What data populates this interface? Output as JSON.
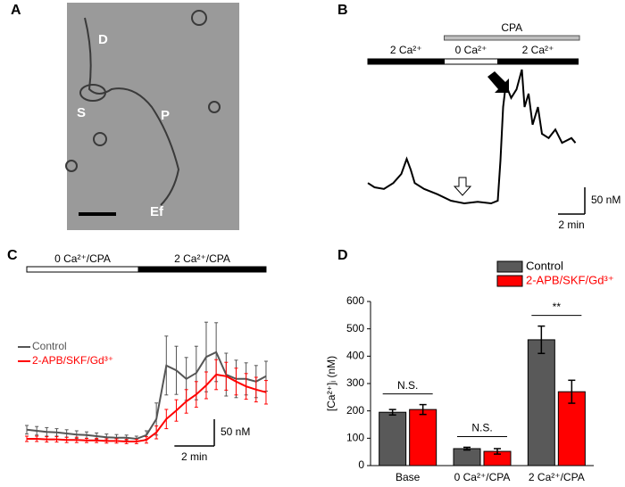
{
  "image_panel": {
    "label": "A",
    "annotations": [
      "D",
      "S",
      "P",
      "Ef"
    ]
  },
  "chart_data": [
    {
      "type": "line",
      "label": "B",
      "x": [
        0,
        0.5,
        1.2,
        1.9,
        2.5,
        2.9,
        3.2,
        3.5,
        4.2,
        5.2,
        6.2,
        7.2,
        8.2,
        9.2,
        9.7,
        9.9,
        10.1,
        10.3,
        10.7,
        11.1,
        11.5,
        11.7,
        12,
        12.3,
        12.7,
        13,
        13.5,
        14,
        14.5,
        15.2,
        15.5
      ],
      "series": [
        {
          "color": "#000000",
          "values": [
            58,
            50,
            47,
            58,
            75,
            103,
            83,
            58,
            47,
            37,
            25,
            20,
            23,
            20,
            25,
            100,
            200,
            242,
            217,
            233,
            270,
            200,
            225,
            167,
            200,
            150,
            142,
            158,
            133,
            142,
            133
          ]
        }
      ],
      "phases": [
        {
          "label": "2 Ca²⁺",
          "start": 0,
          "end": 5.7,
          "color": "#000000"
        },
        {
          "label": "0 Ca²⁺",
          "start": 5.7,
          "end": 9.7,
          "color": "#ffffff"
        },
        {
          "label": "2 Ca²⁺",
          "start": 9.7,
          "end": 15.7,
          "color": "#000000"
        }
      ],
      "treatment": {
        "label": "CPA",
        "start": 5.7,
        "end": 15.8,
        "color": "#bfbfbf"
      },
      "scale_y": {
        "value": 50,
        "label": "50 nM"
      },
      "scale_x": {
        "value": 2,
        "label": "2 min"
      }
    },
    {
      "type": "line",
      "label": "C",
      "x": [
        0,
        0.5,
        1,
        1.5,
        2,
        2.5,
        3,
        3.5,
        4,
        4.5,
        5,
        5.5,
        6,
        6.5,
        7,
        7.5,
        8,
        8.5,
        9,
        9.5,
        10,
        10.5,
        11,
        11.5,
        12
      ],
      "series": [
        {
          "name": "Control",
          "color": "#555555",
          "values": [
            47,
            45,
            43,
            42,
            40,
            38,
            37,
            35,
            33,
            32,
            32,
            30,
            37,
            67,
            167,
            158,
            142,
            153,
            183,
            192,
            150,
            142,
            142,
            137,
            147
          ],
          "errors": [
            8,
            8,
            8,
            7,
            7,
            7,
            6,
            6,
            6,
            6,
            5,
            5,
            8,
            30,
            55,
            45,
            40,
            50,
            65,
            55,
            40,
            35,
            30,
            30,
            28
          ]
        },
        {
          "name": "2-APB/SKF/Gd³⁺",
          "color": "#ff0000",
          "values": [
            30,
            30,
            29,
            29,
            28,
            28,
            27,
            27,
            26,
            26,
            25,
            25,
            28,
            42,
            67,
            83,
            100,
            113,
            130,
            150,
            147,
            137,
            128,
            122,
            117
          ],
          "errors": [
            5,
            5,
            5,
            5,
            5,
            5,
            4,
            4,
            4,
            4,
            4,
            4,
            6,
            12,
            18,
            20,
            22,
            24,
            25,
            28,
            26,
            25,
            24,
            23,
            22
          ]
        }
      ],
      "phases": [
        {
          "label": "0 Ca²⁺/CPA",
          "start": 0,
          "end": 5.6,
          "color": "#ffffff"
        },
        {
          "label": "2 Ca²⁺/CPA",
          "start": 5.6,
          "end": 12,
          "color": "#000000"
        }
      ],
      "scale_y": {
        "value": 50,
        "label": "50 nM"
      },
      "scale_x": {
        "value": 2,
        "label": "2 min"
      }
    },
    {
      "type": "bar",
      "label": "D",
      "ylabel": "[Ca²⁺]ᵢ (nM)",
      "categories": [
        "Base",
        "0 Ca²⁺/CPA",
        "2 Ca²⁺/CPA"
      ],
      "series": [
        {
          "name": "Control",
          "color": "#595959",
          "values": [
            195,
            62,
            460
          ],
          "errors": [
            10,
            5,
            50
          ]
        },
        {
          "name": "2-APB/SKF/Gd³⁺",
          "color": "#ff0000",
          "values": [
            205,
            52,
            270
          ],
          "errors": [
            18,
            10,
            42
          ]
        }
      ],
      "significance": [
        "N.S.",
        "N.S.",
        "**"
      ],
      "ylim": [
        0,
        600
      ],
      "yticks": [
        0,
        100,
        200,
        300,
        400,
        500,
        600
      ]
    }
  ]
}
